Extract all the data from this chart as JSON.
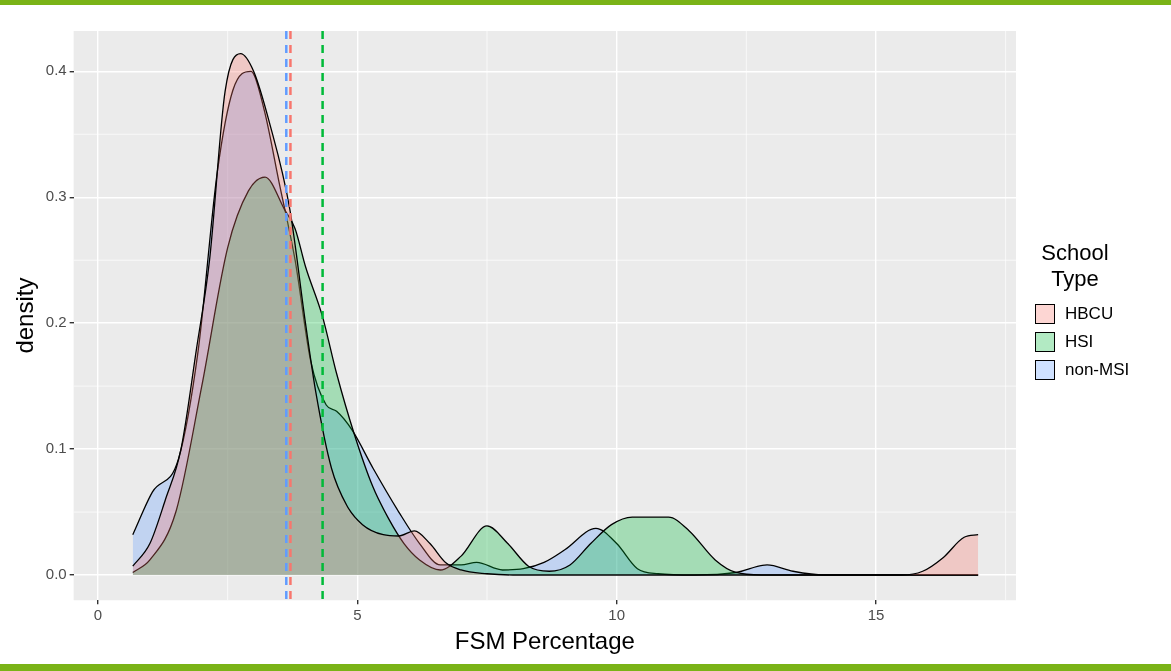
{
  "chart_data": {
    "type": "area",
    "xlabel": "FSM Percentage",
    "ylabel": "density",
    "legend_title": "School Type",
    "xlim": [
      -0.47,
      17.7
    ],
    "ylim": [
      -0.02,
      0.432
    ],
    "xticks": [
      0,
      5,
      10,
      15
    ],
    "yticks": [
      {
        "value": 0,
        "label": "0.0"
      },
      {
        "value": 0.1,
        "label": "0.1"
      },
      {
        "value": 0.2,
        "label": "0.2"
      },
      {
        "value": 0.3,
        "label": "0.3"
      },
      {
        "value": 0.4,
        "label": "0.4"
      }
    ],
    "grid": true,
    "legend": "right",
    "marker": "none",
    "series": [
      {
        "name": "HBCU",
        "color": "#f8766d",
        "x": [
          0.67,
          1.0,
          1.3,
          1.6,
          1.9,
          2.15,
          2.45,
          2.75,
          3.0,
          3.3,
          3.7,
          4.0,
          4.2,
          4.5,
          4.8,
          5.1,
          5.5,
          5.8,
          6.1,
          6.4,
          6.7,
          7.0,
          7.5,
          8.0,
          15.5,
          15.9,
          16.3,
          16.7,
          16.97
        ],
        "values": [
          0.007,
          0.025,
          0.06,
          0.1,
          0.18,
          0.25,
          0.384,
          0.414,
          0.4,
          0.36,
          0.29,
          0.2,
          0.145,
          0.085,
          0.055,
          0.04,
          0.032,
          0.031,
          0.035,
          0.025,
          0.01,
          0.004,
          0.001,
          0,
          0,
          0.003,
          0.014,
          0.03,
          0.032
        ]
      },
      {
        "name": "HSI",
        "color": "#00ba38",
        "x": [
          0.67,
          1.0,
          1.5,
          2.0,
          2.5,
          2.9,
          3.22,
          3.6,
          3.8,
          4.0,
          4.33,
          4.6,
          4.94,
          5.3,
          5.6,
          5.9,
          6.2,
          6.6,
          7.0,
          7.5,
          7.9,
          8.3,
          8.7,
          9.1,
          9.5,
          9.9,
          10.3,
          11.0,
          11.4,
          11.9,
          12.3,
          12.8,
          16.97
        ],
        "values": [
          0.002,
          0.012,
          0.05,
          0.15,
          0.26,
          0.305,
          0.316,
          0.29,
          0.275,
          0.245,
          0.205,
          0.16,
          0.112,
          0.07,
          0.045,
          0.025,
          0.012,
          0.004,
          0.015,
          0.039,
          0.025,
          0.007,
          0.003,
          0.008,
          0.025,
          0.04,
          0.046,
          0.046,
          0.035,
          0.012,
          0.002,
          0,
          0
        ]
      },
      {
        "name": "non-MSI",
        "color": "#619cff",
        "x": [
          0.67,
          1.05,
          1.55,
          1.93,
          2.3,
          2.6,
          2.95,
          3.2,
          3.5,
          3.8,
          4.1,
          4.4,
          4.6,
          4.9,
          5.3,
          5.8,
          6.2,
          6.6,
          7.0,
          7.3,
          7.8,
          8.2,
          8.6,
          9.0,
          9.6,
          10.0,
          10.4,
          10.8,
          11.5,
          12.3,
          12.9,
          13.4,
          14.0,
          16.97
        ],
        "values": [
          0.032,
          0.066,
          0.092,
          0.178,
          0.32,
          0.385,
          0.4,
          0.37,
          0.31,
          0.25,
          0.17,
          0.135,
          0.13,
          0.115,
          0.085,
          0.05,
          0.025,
          0.008,
          0.008,
          0.01,
          0.004,
          0.005,
          0.01,
          0.02,
          0.037,
          0.025,
          0.005,
          0.001,
          0,
          0.002,
          0.008,
          0.003,
          0,
          0
        ]
      }
    ],
    "ref_lines": [
      {
        "axis": "x",
        "value": 3.63,
        "color": "#619cff",
        "line_style": "dashed"
      },
      {
        "axis": "x",
        "value": 3.71,
        "color": "#f8766d",
        "line_style": "dashed"
      },
      {
        "axis": "x",
        "value": 4.33,
        "color": "#00ba38",
        "line_style": "dashed"
      }
    ]
  }
}
